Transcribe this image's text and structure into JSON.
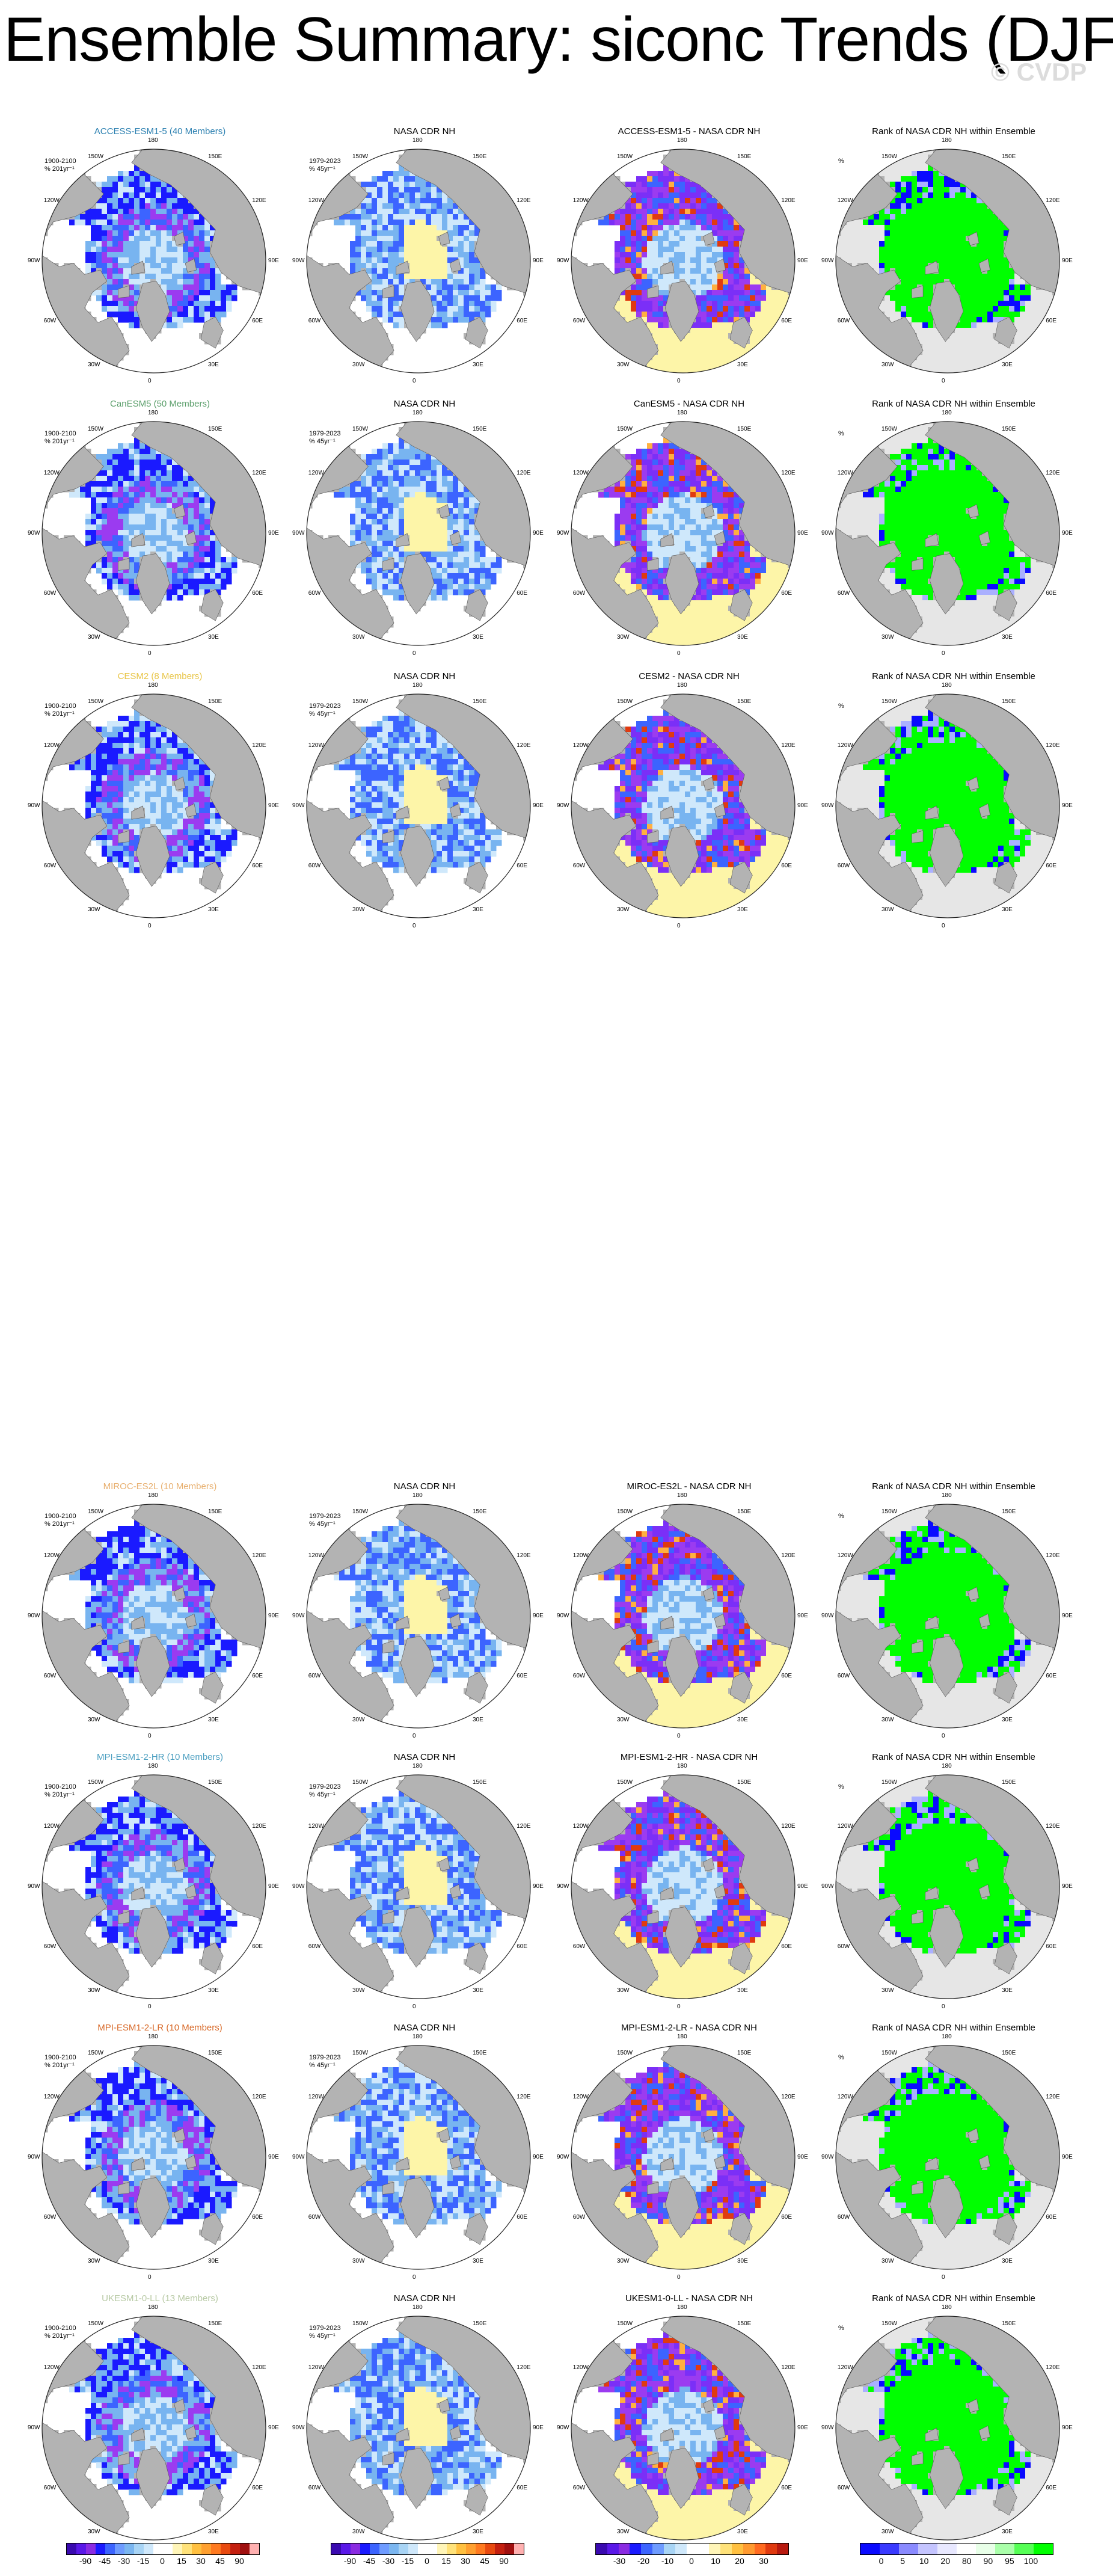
{
  "title": "Ensemble Summary: siconc Trends (DJF)",
  "watermark": "© CVDP",
  "lon_labels": [
    "180",
    "150E",
    "120E",
    "90E",
    "60E",
    "30E",
    "0",
    "30W",
    "60W",
    "90W",
    "120W",
    "150W"
  ],
  "model_colors": {
    "ACCESS-ESM1-5": "#2a7fb0",
    "CanESM5": "#5a9e6a",
    "CESM2": "#e8c547",
    "MIROC-ES2L": "#e8b070",
    "MPI-ESM1-2-HR": "#4a9ec0",
    "MPI-ESM1-2-LR": "#d86a2a",
    "UKESM1-0-LL": "#b7c9a4"
  },
  "rows": [
    {
      "model": "ACCESS-ESM1-5",
      "model_title": "ACCESS-ESM1-5 (40 Members)",
      "diff_title": "ACCESS-ESM1-5 - NASA CDR NH"
    },
    {
      "model": "CanESM5",
      "model_title": "CanESM5 (50 Members)",
      "diff_title": "CanESM5 - NASA CDR NH"
    },
    {
      "model": "CESM2",
      "model_title": "CESM2 (8 Members)",
      "diff_title": "CESM2 - NASA CDR NH"
    },
    {
      "model": "MIROC-ES2L",
      "model_title": "MIROC-ES2L (10 Members)",
      "diff_title": "MIROC-ES2L - NASA CDR NH"
    },
    {
      "model": "MPI-ESM1-2-HR",
      "model_title": "MPI-ESM1-2-HR (10 Members)",
      "diff_title": "MPI-ESM1-2-HR - NASA CDR NH"
    },
    {
      "model": "MPI-ESM1-2-LR",
      "model_title": "MPI-ESM1-2-LR (10 Members)",
      "diff_title": "MPI-ESM1-2-LR - NASA CDR NH"
    },
    {
      "model": "UKESM1-0-LL",
      "model_title": "UKESM1-0-LL (13 Members)",
      "diff_title": "UKESM1-0-LL - NASA CDR NH"
    }
  ],
  "obs_title": "NASA CDR NH",
  "rank_title": "Rank of NASA CDR NH within Ensemble",
  "model_period": "1900-2100",
  "model_units": "% 201yr⁻¹",
  "obs_period": "1979-2023",
  "obs_units": "% 45yr⁻¹",
  "rank_units": "%",
  "colorbars": [
    {
      "name": "model-trend",
      "labels": [
        "-90",
        "-45",
        "-30",
        "-15",
        "0",
        "15",
        "30",
        "45",
        "90"
      ],
      "colors": [
        "#3a0ab0",
        "#5a18e8",
        "#8a2be2",
        "#1a1aff",
        "#3c64ff",
        "#6e9bff",
        "#7bb6f0",
        "#a8d4f5",
        "#cfe8fb",
        "#ffffff",
        "#ffffff",
        "#fff5b8",
        "#ffe27a",
        "#ffc040",
        "#ffa030",
        "#ff7a20",
        "#e84a10",
        "#c42010",
        "#a01010",
        "#ffb0b0"
      ]
    },
    {
      "name": "obs-trend",
      "labels": [
        "-90",
        "-45",
        "-30",
        "-15",
        "0",
        "15",
        "30",
        "45",
        "90"
      ],
      "colors": [
        "#3a0ab0",
        "#5a18e8",
        "#8a2be2",
        "#1a1aff",
        "#3c64ff",
        "#6e9bff",
        "#7bb6f0",
        "#a8d4f5",
        "#cfe8fb",
        "#ffffff",
        "#ffffff",
        "#fff5b8",
        "#ffe27a",
        "#ffc040",
        "#ffa030",
        "#ff7a20",
        "#e84a10",
        "#c42010",
        "#a01010",
        "#ffb0b0"
      ]
    },
    {
      "name": "diff",
      "labels": [
        "-30",
        "-20",
        "-10",
        "0",
        "10",
        "20",
        "30"
      ],
      "colors": [
        "#3a0ab0",
        "#5a18e8",
        "#8a2be2",
        "#1a1aff",
        "#3c64ff",
        "#6e9bff",
        "#a8d4f5",
        "#cfe8fb",
        "#ffffff",
        "#ffffff",
        "#fff5b8",
        "#ffe27a",
        "#ffc040",
        "#ff9a30",
        "#ff6a20",
        "#e03a10",
        "#b81a10"
      ]
    },
    {
      "name": "rank",
      "labels": [
        "0",
        "5",
        "10",
        "20",
        "80",
        "90",
        "95",
        "100"
      ],
      "colors": [
        "#0a0aff",
        "#3a3aff",
        "#8a8aff",
        "#c4c4ff",
        "#e8e8ff",
        "#ffffff",
        "#e8ffe8",
        "#aaffaa",
        "#55ff55",
        "#00ff00"
      ]
    }
  ],
  "palette": {
    "land": "#b3b3b3",
    "deep_purple": "#7b2ff7",
    "purple": "#9b3bf0",
    "dark_blue": "#1a1aff",
    "blue": "#3c64ff",
    "mid_blue": "#78b4f0",
    "light_blue": "#cfe8fb",
    "pale_yellow": "#fdf5a8",
    "rank_green": "#00ff00",
    "rank_grey": "#e6e6e6",
    "rank_blue": "#0a0aff"
  }
}
